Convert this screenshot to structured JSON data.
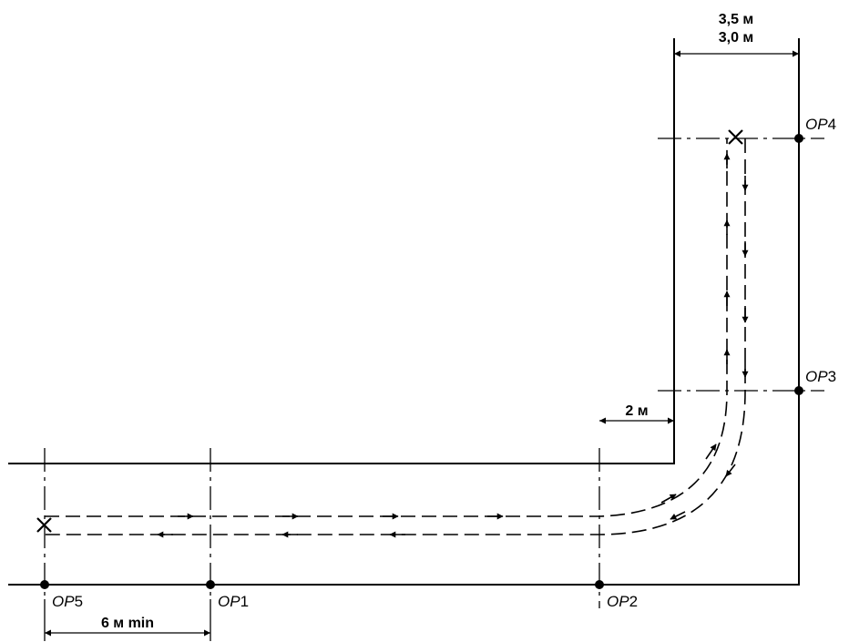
{
  "points": {
    "op1": {
      "prefix": "OP",
      "number": "1"
    },
    "op2": {
      "prefix": "OP",
      "number": "2"
    },
    "op3": {
      "prefix": "OP",
      "number": "3"
    },
    "op4": {
      "prefix": "OP",
      "number": "4"
    },
    "op5": {
      "prefix": "OP",
      "number": "5"
    }
  },
  "dimensions": {
    "width_top": "3,5 м",
    "width_bottom": "3,0 м",
    "offset": "2 м",
    "min_length": "6 м min"
  }
}
